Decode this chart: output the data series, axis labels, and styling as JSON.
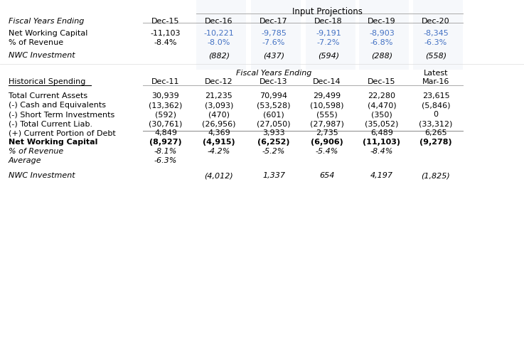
{
  "background_color": "#ffffff",
  "blue_color": "#4472C4",
  "black_color": "#000000",
  "light_blue_bg": "#DCE6F1",
  "section1": {
    "header": "Input Projections",
    "col_label": "Fiscal Years Ending",
    "columns": [
      "Dec-15",
      "Dec-16",
      "Dec-17",
      "Dec-18",
      "Dec-19",
      "Dec-20"
    ],
    "rows": {
      "Net Working Capital": {
        "values": [
          "-11,103",
          "-10,221",
          "-9,785",
          "-9,191",
          "-8,903",
          "-8,345"
        ],
        "colors": [
          "black",
          "blue",
          "blue",
          "blue",
          "blue",
          "blue"
        ]
      },
      "% of Revenue": {
        "values": [
          "-8.4%",
          "-8.0%",
          "-7.6%",
          "-7.2%",
          "-6.8%",
          "-6.3%"
        ],
        "colors": [
          "black",
          "blue",
          "blue",
          "blue",
          "blue",
          "blue"
        ]
      },
      "NWC Investment": {
        "values": [
          "",
          "(882)",
          "(437)",
          "(594)",
          "(288)",
          "(558)"
        ],
        "colors": [
          "black",
          "black",
          "black",
          "black",
          "black",
          "black"
        ]
      }
    }
  },
  "section2": {
    "header": "Fiscal Years Ending",
    "col_label": "Historical Spending",
    "columns": [
      "Dec-11",
      "Dec-12",
      "Dec-13",
      "Dec-14",
      "Dec-15"
    ],
    "latest_col": "Mar-16",
    "latest_header": "Latest",
    "rows": {
      "Total Current Assets": [
        "30,939",
        "21,235",
        "70,994",
        "29,499",
        "22,280",
        "23,615"
      ],
      "(-) Cash and Equivalents": [
        "(13,362)",
        "(3,093)",
        "(53,528)",
        "(10,598)",
        "(4,470)",
        "(5,846)"
      ],
      "(-) Short Term Investments": [
        "(592)",
        "(470)",
        "(601)",
        "(555)",
        "(350)",
        "0"
      ],
      "(-) Total Current Liab.": [
        "(30,761)",
        "(26,956)",
        "(27,050)",
        "(27,987)",
        "(35,052)",
        "(33,312)"
      ],
      "(+) Current Portion of Debt": [
        "4,849",
        "4,369",
        "3,933",
        "2,735",
        "6,489",
        "6,265"
      ],
      "Net Working Capital": [
        "(8,927)",
        "(4,915)",
        "(6,252)",
        "(6,906)",
        "(11,103)",
        "(9,278)"
      ],
      "% of Revenue": [
        "-8.1%",
        "-4.2%",
        "-5.2%",
        "-5.4%",
        "-8.4%",
        ""
      ],
      "Average": [
        "-6.3%",
        "",
        "",
        "",
        "",
        ""
      ],
      "NWC Investment": [
        "",
        "(4,012)",
        "1,337",
        "654",
        "4,197",
        "(1,825)"
      ]
    }
  }
}
